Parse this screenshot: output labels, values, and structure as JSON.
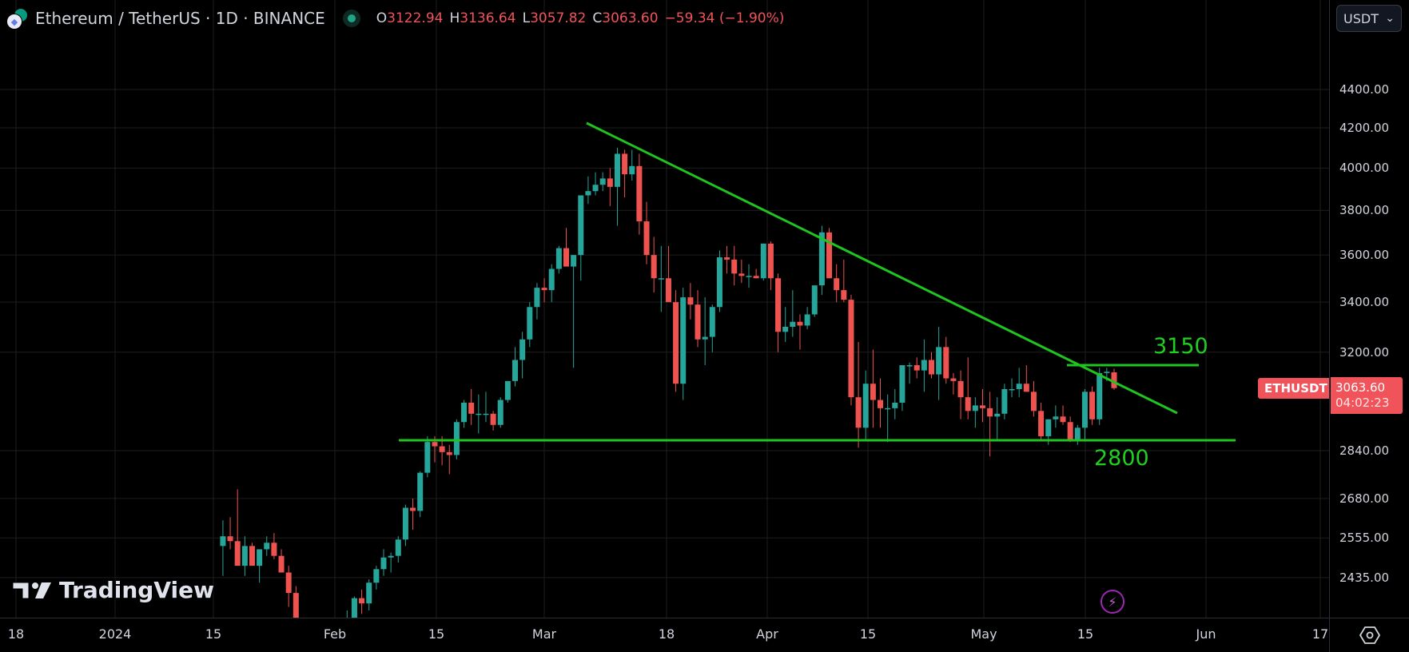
{
  "header": {
    "symbol_title": "Ethereum / TetherUS · 1D · BINANCE",
    "logo_glyph": "◆",
    "ohlc": [
      {
        "key": "O",
        "value": "3122.94"
      },
      {
        "key": "H",
        "value": "3136.64"
      },
      {
        "key": "L",
        "value": "3057.82"
      },
      {
        "key": "C",
        "value": "3063.60"
      }
    ],
    "change": "−59.34 (−1.90%)"
  },
  "currency_selector": {
    "label": "USDT",
    "chevron": "⌄"
  },
  "price_axis": {
    "ticks": [
      "4400.00",
      "4200.00",
      "4000.00",
      "3800.00",
      "3600.00",
      "3400.00",
      "3200.00",
      "2840.00",
      "2680.00",
      "2555.00",
      "2435.00"
    ],
    "last_price_label": {
      "symbol": "ETHUSDT",
      "price": "3063.60",
      "countdown": "04:02:23"
    }
  },
  "time_axis": {
    "ticks": [
      "18",
      "2024",
      "15",
      "Feb",
      "15",
      "Mar",
      "18",
      "Apr",
      "15",
      "May",
      "15",
      "Jun",
      "17"
    ]
  },
  "annotations": {
    "resistance_label": "3150",
    "support_label": "2800"
  },
  "watermark": {
    "logo_text": "TradingView"
  },
  "settings_icon": "gear",
  "colors": {
    "up": "#26a69a",
    "down": "#ef5350",
    "trendline": "#1fc41f",
    "background": "#000000",
    "grid": "#1e1e1e",
    "last_price": "#f0535a"
  },
  "chart_data": {
    "type": "candlestick",
    "title": "Ethereum / TetherUS · 1D · BINANCE",
    "xlabel": "",
    "ylabel": "USDT",
    "scale": "log",
    "ylim": [
      2330,
      4620
    ],
    "x_ticks": [
      "18",
      "2024",
      "15",
      "Feb",
      "15",
      "Mar",
      "18",
      "Apr",
      "15",
      "May",
      "15",
      "Jun",
      "17"
    ],
    "y_ticks": [
      4400,
      4200,
      4000,
      3800,
      3600,
      3400,
      3200,
      2840,
      2680,
      2555,
      2435
    ],
    "grid": true,
    "last_price": 3063.6,
    "candles_note": "approximate daily OHLC read from pixels, Jan 2024 – May 21 2024",
    "candles": [
      [
        2530,
        2610,
        2440,
        2560
      ],
      [
        2560,
        2620,
        2520,
        2545
      ],
      [
        2545,
        2710,
        2510,
        2470
      ],
      [
        2470,
        2560,
        2440,
        2530
      ],
      [
        2530,
        2540,
        2470,
        2470
      ],
      [
        2470,
        2510,
        2420,
        2520
      ],
      [
        2520,
        2560,
        2500,
        2540
      ],
      [
        2540,
        2570,
        2490,
        2500
      ],
      [
        2500,
        2520,
        2450,
        2450
      ],
      [
        2450,
        2470,
        2350,
        2390
      ],
      [
        2390,
        2410,
        2200,
        2210
      ],
      [
        2210,
        2260,
        2150,
        2240
      ],
      [
        2240,
        2280,
        2180,
        2215
      ],
      [
        2215,
        2250,
        2160,
        2190
      ],
      [
        2190,
        2240,
        2170,
        2230
      ],
      [
        2230,
        2270,
        2200,
        2225
      ],
      [
        2225,
        2300,
        2200,
        2280
      ],
      [
        2280,
        2340,
        2260,
        2300
      ],
      [
        2300,
        2380,
        2290,
        2375
      ],
      [
        2375,
        2400,
        2330,
        2360
      ],
      [
        2360,
        2430,
        2340,
        2420
      ],
      [
        2420,
        2470,
        2400,
        2460
      ],
      [
        2460,
        2520,
        2440,
        2495
      ],
      [
        2495,
        2510,
        2450,
        2500
      ],
      [
        2500,
        2560,
        2480,
        2550
      ],
      [
        2550,
        2660,
        2530,
        2650
      ],
      [
        2650,
        2680,
        2580,
        2640
      ],
      [
        2640,
        2770,
        2620,
        2765
      ],
      [
        2765,
        2890,
        2750,
        2870
      ],
      [
        2870,
        2890,
        2800,
        2855
      ],
      [
        2855,
        2890,
        2790,
        2835
      ],
      [
        2835,
        2860,
        2760,
        2825
      ],
      [
        2825,
        2950,
        2810,
        2940
      ],
      [
        2940,
        3020,
        2920,
        3010
      ],
      [
        3010,
        3060,
        2930,
        2970
      ],
      [
        2970,
        3040,
        2900,
        2970
      ],
      [
        2970,
        3050,
        2940,
        2970
      ],
      [
        2970,
        2980,
        2910,
        2930
      ],
      [
        2930,
        3030,
        2920,
        3020
      ],
      [
        3020,
        3070,
        3010,
        3090
      ],
      [
        3090,
        3220,
        3070,
        3170
      ],
      [
        3170,
        3280,
        3100,
        3250
      ],
      [
        3250,
        3400,
        3220,
        3380
      ],
      [
        3380,
        3480,
        3330,
        3460
      ],
      [
        3460,
        3500,
        3400,
        3450
      ],
      [
        3450,
        3560,
        3400,
        3540
      ],
      [
        3540,
        3640,
        3520,
        3630
      ],
      [
        3630,
        3720,
        3600,
        3550
      ],
      [
        3550,
        3590,
        3140,
        3600
      ],
      [
        3600,
        3830,
        3490,
        3870
      ],
      [
        3870,
        3960,
        3830,
        3890
      ],
      [
        3890,
        3980,
        3870,
        3920
      ],
      [
        3920,
        3980,
        3890,
        3950
      ],
      [
        3950,
        4000,
        3820,
        3910
      ],
      [
        3910,
        4100,
        3730,
        4070
      ],
      [
        4070,
        4090,
        3860,
        3970
      ],
      [
        3970,
        4090,
        3940,
        4010
      ],
      [
        4010,
        4070,
        3690,
        3750
      ],
      [
        3750,
        3840,
        3560,
        3600
      ],
      [
        3600,
        3680,
        3440,
        3500
      ],
      [
        3500,
        3640,
        3360,
        3500
      ],
      [
        3500,
        3640,
        3460,
        3400
      ],
      [
        3400,
        3450,
        3050,
        3080
      ],
      [
        3080,
        3460,
        3020,
        3420
      ],
      [
        3420,
        3480,
        3330,
        3390
      ],
      [
        3390,
        3450,
        3220,
        3250
      ],
      [
        3250,
        3420,
        3150,
        3260
      ],
      [
        3260,
        3390,
        3200,
        3380
      ],
      [
        3380,
        3620,
        3360,
        3590
      ],
      [
        3590,
        3640,
        3520,
        3580
      ],
      [
        3580,
        3640,
        3470,
        3520
      ],
      [
        3520,
        3580,
        3480,
        3510
      ],
      [
        3510,
        3560,
        3460,
        3510
      ],
      [
        3510,
        3540,
        3500,
        3500
      ],
      [
        3500,
        3640,
        3490,
        3650
      ],
      [
        3650,
        3660,
        3450,
        3500
      ],
      [
        3500,
        3520,
        3200,
        3280
      ],
      [
        3280,
        3380,
        3240,
        3300
      ],
      [
        3300,
        3450,
        3260,
        3320
      ],
      [
        3320,
        3350,
        3210,
        3305
      ],
      [
        3305,
        3380,
        3290,
        3350
      ],
      [
        3350,
        3460,
        3340,
        3470
      ],
      [
        3470,
        3730,
        3430,
        3700
      ],
      [
        3700,
        3720,
        3500,
        3500
      ],
      [
        3500,
        3560,
        3400,
        3450
      ],
      [
        3450,
        3580,
        3400,
        3410
      ],
      [
        3410,
        3430,
        3000,
        3030
      ],
      [
        3030,
        3240,
        2850,
        2920
      ],
      [
        2920,
        3130,
        2880,
        3080
      ],
      [
        3080,
        3210,
        2920,
        3020
      ],
      [
        3020,
        3100,
        2920,
        2990
      ],
      [
        2990,
        3040,
        2870,
        2990
      ],
      [
        2990,
        3060,
        2950,
        3010
      ],
      [
        3010,
        3150,
        2980,
        3150
      ],
      [
        3150,
        3160,
        3080,
        3150
      ],
      [
        3150,
        3180,
        3100,
        3130
      ],
      [
        3130,
        3250,
        3050,
        3170
      ],
      [
        3170,
        3200,
        3100,
        3115
      ],
      [
        3115,
        3300,
        3020,
        3220
      ],
      [
        3220,
        3260,
        3080,
        3100
      ],
      [
        3100,
        3120,
        3040,
        3090
      ],
      [
        3090,
        3130,
        2950,
        3030
      ],
      [
        3030,
        3180,
        2950,
        2980
      ],
      [
        2980,
        3030,
        2920,
        3000
      ],
      [
        3000,
        3060,
        2940,
        2990
      ],
      [
        2990,
        3050,
        2820,
        2960
      ],
      [
        2960,
        3030,
        2880,
        2970
      ],
      [
        2970,
        3080,
        2950,
        3060
      ],
      [
        3060,
        3100,
        3030,
        3060
      ],
      [
        3060,
        3140,
        3030,
        3080
      ],
      [
        3080,
        3150,
        3050,
        3050
      ],
      [
        3050,
        3090,
        2960,
        2980
      ],
      [
        2980,
        3010,
        2880,
        2890
      ],
      [
        2890,
        2950,
        2860,
        2950
      ],
      [
        2950,
        3000,
        2920,
        2960
      ],
      [
        2960,
        3000,
        2930,
        2940
      ],
      [
        2940,
        2960,
        2870,
        2880
      ],
      [
        2880,
        2930,
        2860,
        2920
      ],
      [
        2920,
        3060,
        2880,
        3050
      ],
      [
        3050,
        3070,
        2930,
        2950
      ],
      [
        2950,
        3140,
        2930,
        3120
      ],
      [
        3120,
        3140,
        3090,
        3125
      ],
      [
        3122.94,
        3136.64,
        3057.82,
        3063.6
      ]
    ]
  }
}
